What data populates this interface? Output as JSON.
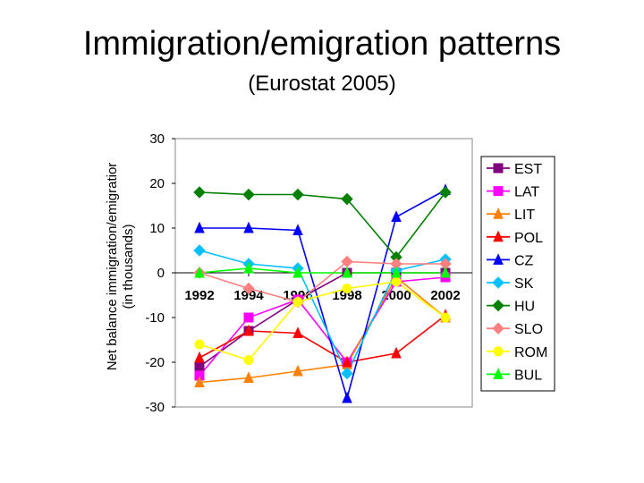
{
  "title": "Immigration/emigration patterns",
  "subtitle": "(Eurostat 2005)",
  "chart_data": {
    "type": "line",
    "title": "Immigration/emigration patterns",
    "subtitle": "(Eurostat 2005)",
    "ylabel_line1": "Net balance immigration/emigratior",
    "ylabel_line2": "(in thousands)",
    "xlabel": "",
    "ylim": [
      -30,
      30
    ],
    "yticks": [
      "30",
      "20",
      "10",
      "0",
      "-10",
      "-20",
      "-30"
    ],
    "yticks_values": [
      30,
      20,
      10,
      0,
      -10,
      -20,
      -30
    ],
    "categories": [
      "1992",
      "1994",
      "1996",
      "1998",
      "2000",
      "2002"
    ],
    "x_extended": [
      1992,
      1993.5,
      1995,
      1997,
      1999,
      2001
    ],
    "grid": false,
    "legend_position": "right",
    "series": [
      {
        "name": "EST",
        "color": "#800080",
        "marker": "square",
        "values": [
          -21,
          -13,
          -6,
          0,
          0,
          0
        ]
      },
      {
        "name": "LAT",
        "color": "#ff00ff",
        "marker": "square",
        "values": [
          -23,
          -10,
          -6,
          -20,
          -2,
          -1
        ]
      },
      {
        "name": "LIT",
        "color": "#ff8000",
        "marker": "triangle",
        "values": [
          -24.5,
          -23.5,
          -22,
          -20.5,
          -1,
          -10
        ]
      },
      {
        "name": "POL",
        "color": "#ff0000",
        "marker": "triangle",
        "values": [
          -19,
          -13,
          -13.5,
          -20,
          -18,
          -9.5
        ]
      },
      {
        "name": "CZ",
        "color": "#0000ff",
        "marker": "triangle",
        "values": [
          10,
          10,
          9.5,
          -28,
          12.5,
          18.5
        ]
      },
      {
        "name": "SK",
        "color": "#00c0ff",
        "marker": "diamond",
        "values": [
          5,
          2,
          1,
          -22.5,
          0.5,
          3
        ]
      },
      {
        "name": "HU",
        "color": "#008000",
        "marker": "diamond",
        "values": [
          18,
          17.5,
          17.5,
          16.5,
          3.5,
          18
        ]
      },
      {
        "name": "SLO",
        "color": "#ff8080",
        "marker": "diamond",
        "values": [
          0,
          -3.5,
          -6.5,
          2.5,
          2,
          2
        ]
      },
      {
        "name": "ROM",
        "color": "#ffff00",
        "marker": "circle",
        "values": [
          -16,
          -19.5,
          -6.5,
          -3.5,
          -2,
          -10
        ]
      },
      {
        "name": "BUL",
        "color": "#00ff00",
        "marker": "triangle",
        "values": [
          0,
          1,
          0,
          0,
          0,
          0
        ]
      }
    ]
  }
}
